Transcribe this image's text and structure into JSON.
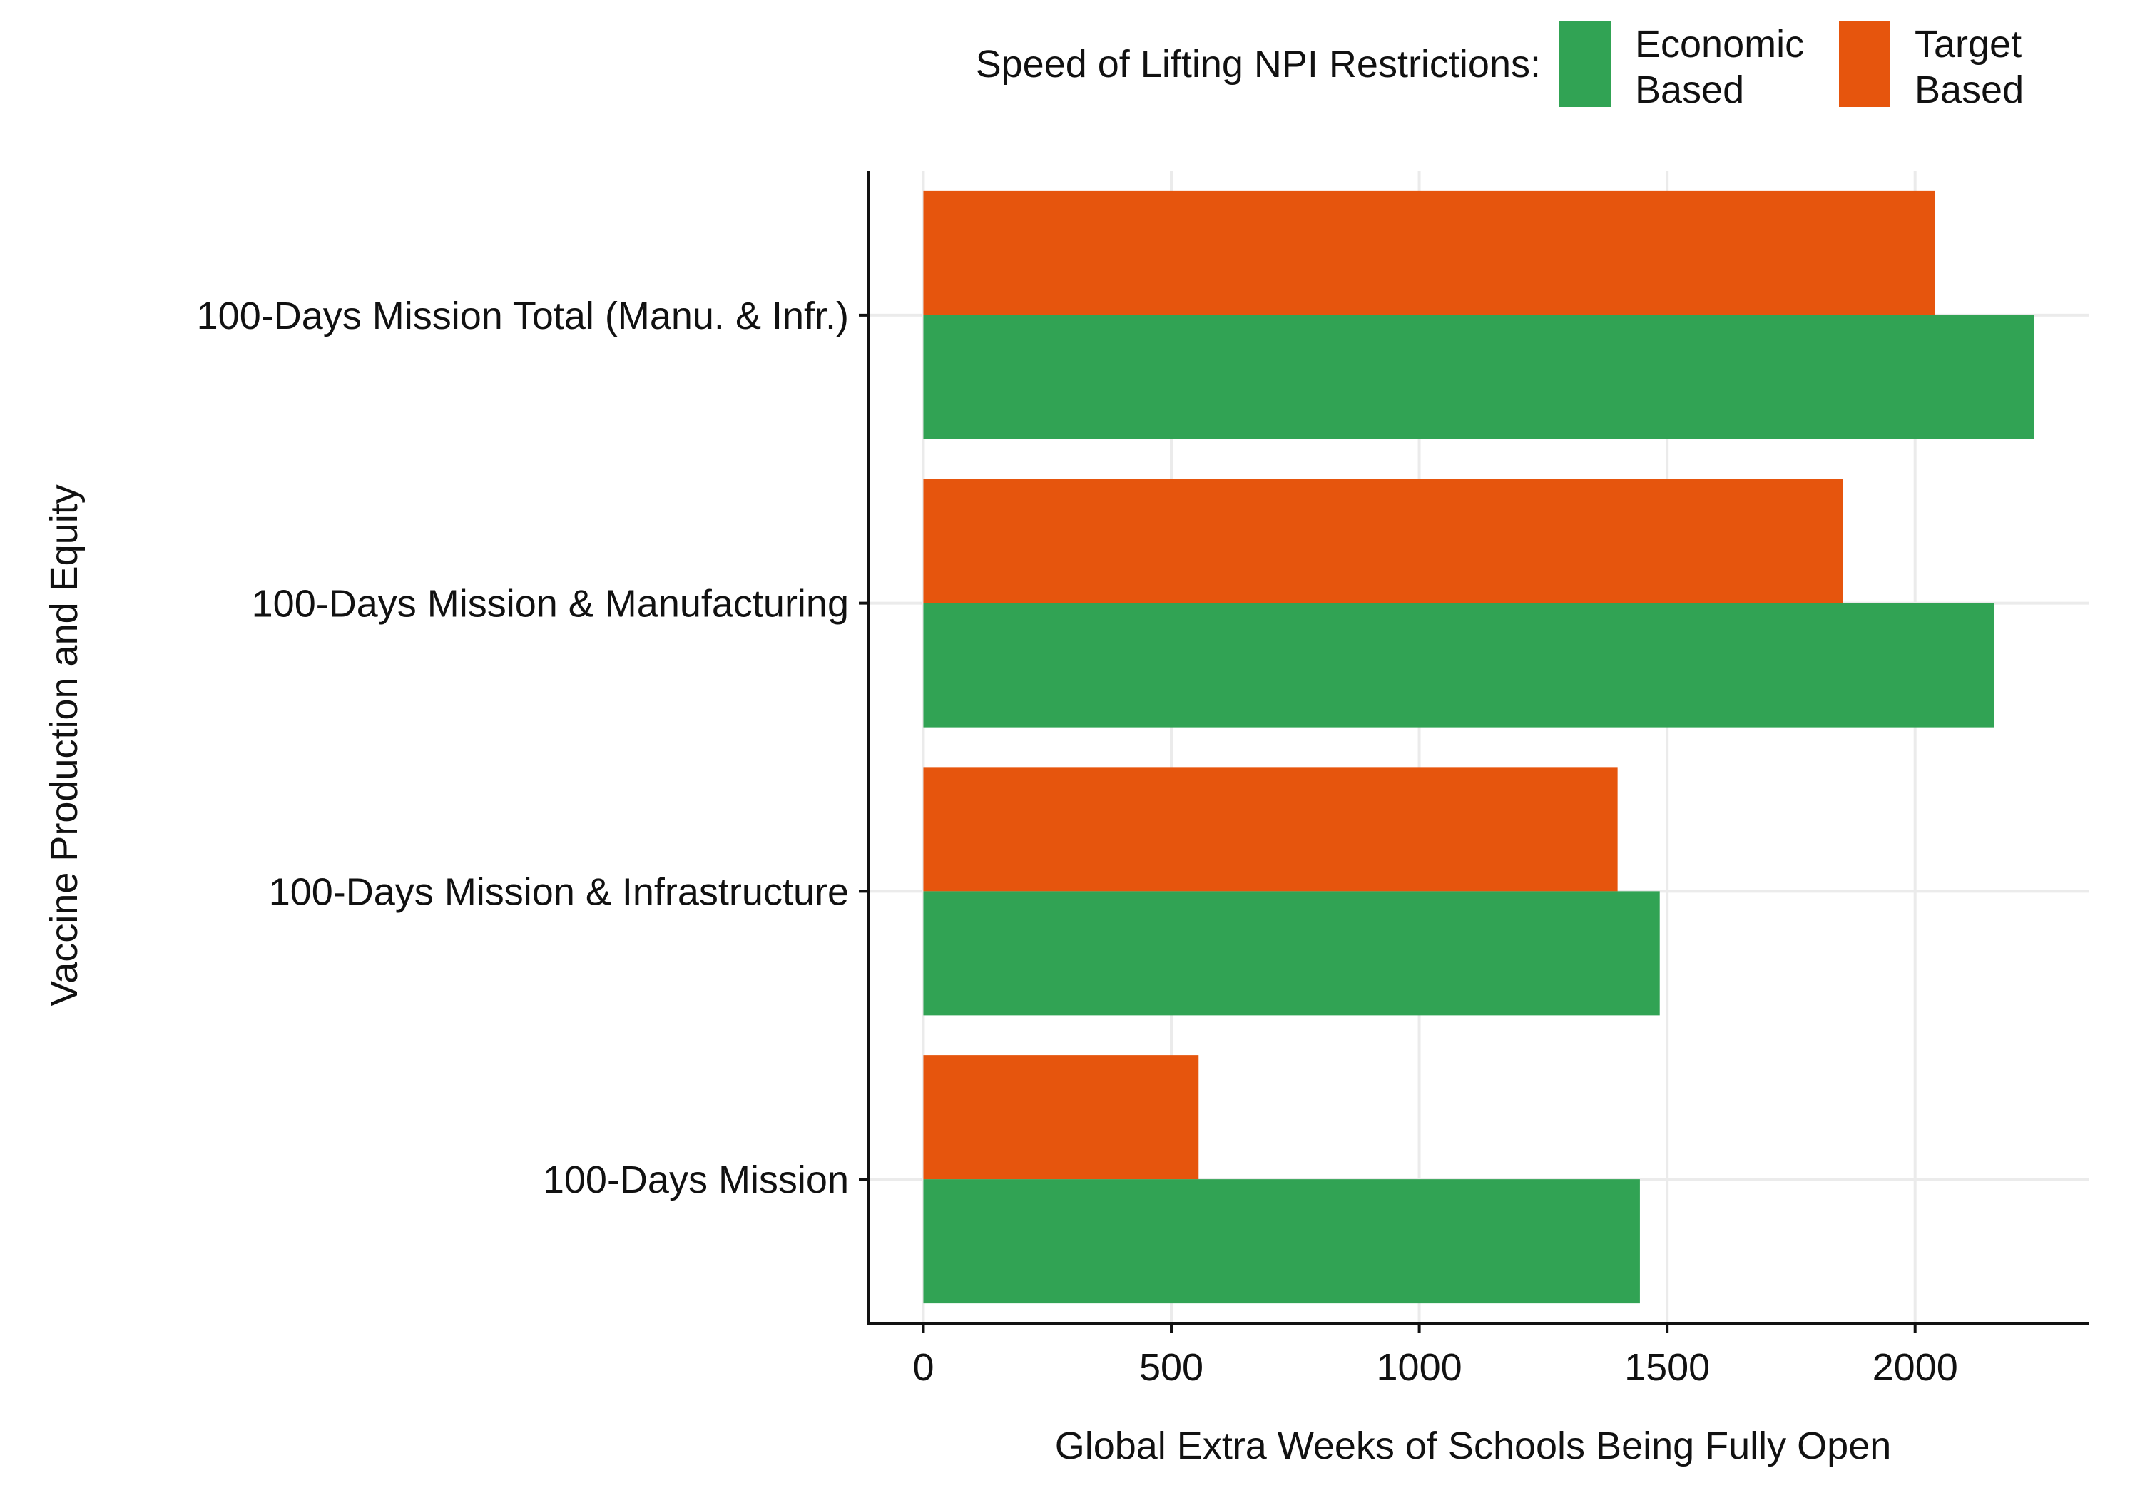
{
  "chart_data": {
    "type": "bar",
    "orientation": "horizontal",
    "categories": [
      "100-Days Mission Total (Manu. & Infr.)",
      "100-Days Mission & Manufacturing",
      "100-Days Mission & Infrastructure",
      "100-Days Mission"
    ],
    "series": [
      {
        "name": "Target Based",
        "values": [
          2040,
          1855,
          1400,
          555
        ],
        "color": "#E6550D"
      },
      {
        "name": "Economic Based",
        "values": [
          2240,
          2160,
          1485,
          1445
        ],
        "color": "#31A354"
      }
    ],
    "legend": {
      "title": "Speed of Lifting NPI Restrictions:",
      "placement": "top-right",
      "entries": [
        {
          "lines": [
            "Economic",
            "Based"
          ],
          "color": "#31A354"
        },
        {
          "lines": [
            "Target",
            "Based"
          ],
          "color": "#E6550D"
        }
      ]
    },
    "xlabel": "Global Extra Weeks of Schools Being Fully Open",
    "ylabel": "Vaccine Production and Equity",
    "xlim": [
      -110,
      2350
    ],
    "xticks": [
      0,
      500,
      1000,
      1500,
      2000
    ],
    "grid": true
  }
}
